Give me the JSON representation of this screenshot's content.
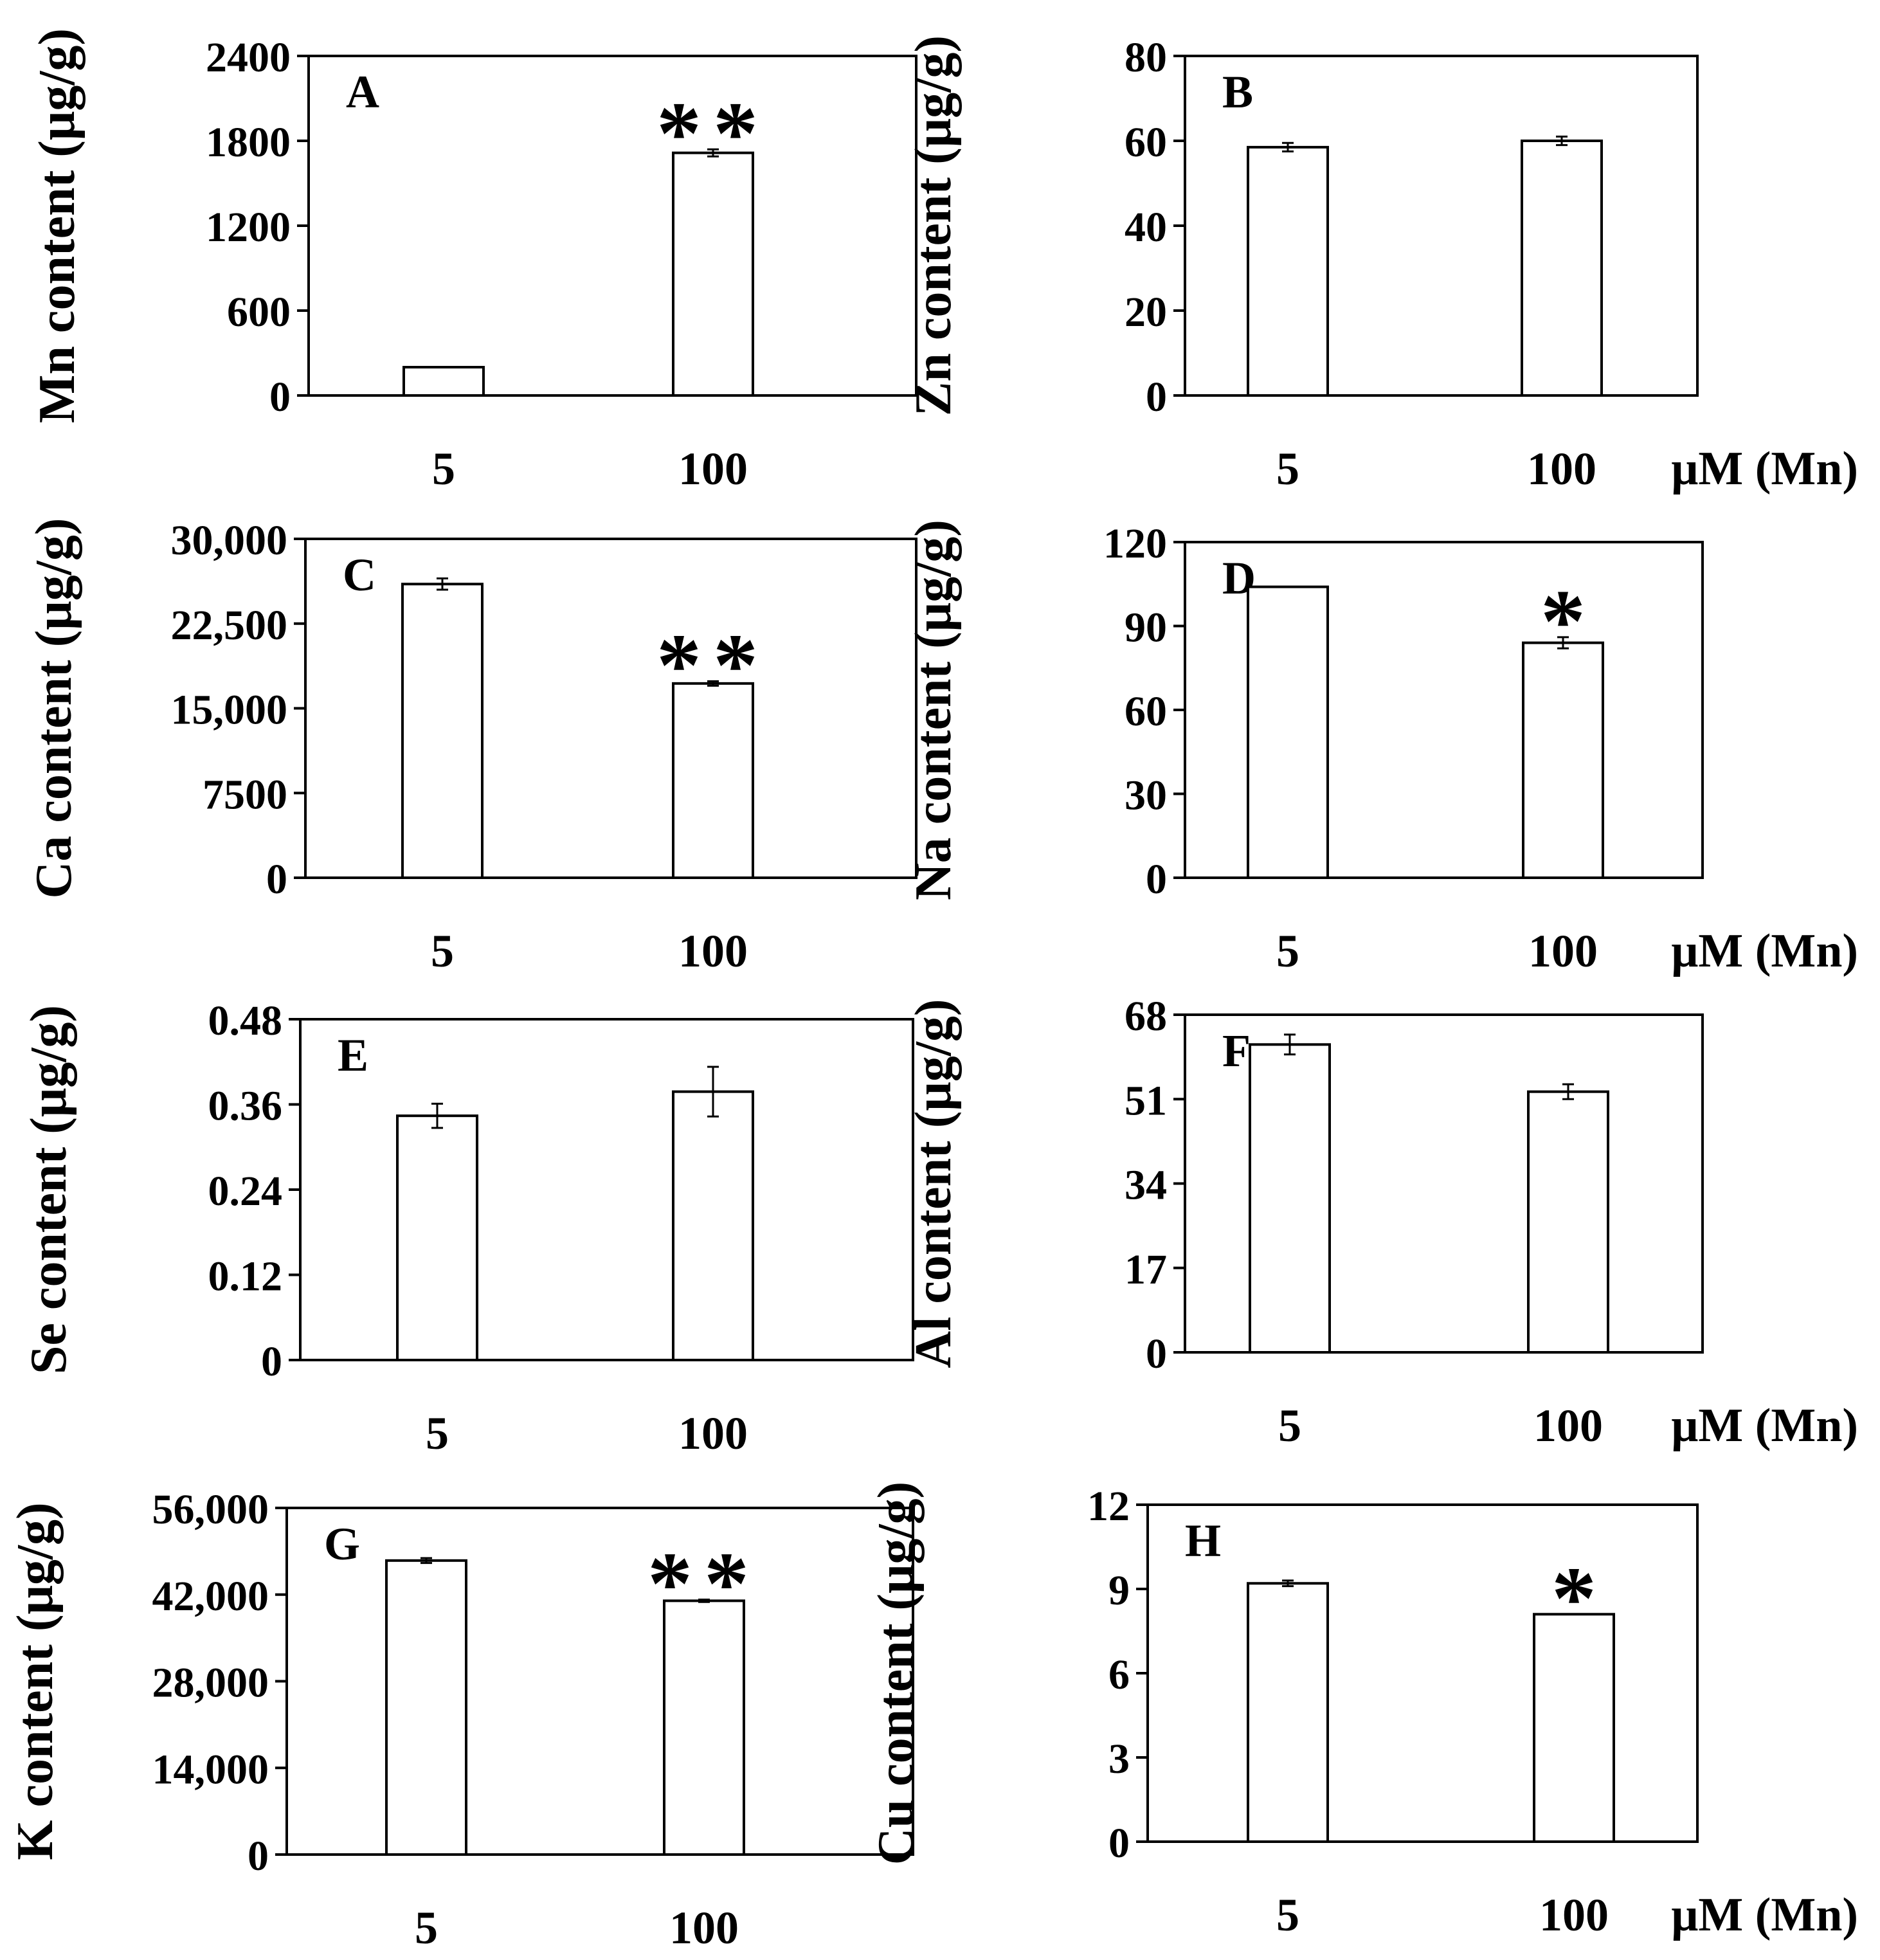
{
  "figure": {
    "x_unit_label": "μM (Mn)",
    "colors": {
      "bar_fill": "#ffffff",
      "stroke": "#000000",
      "background": "#ffffff"
    }
  },
  "chart_data": [
    {
      "panel": "A",
      "type": "bar",
      "ylabel": "Mn content (μg/g)",
      "categories": [
        "5",
        "100"
      ],
      "values": [
        200,
        1715
      ],
      "errors": [
        0,
        25
      ],
      "significance": [
        "",
        "**"
      ],
      "ylim": [
        0,
        2400
      ],
      "yticks": [
        0,
        600,
        1200,
        1800,
        2400
      ],
      "ytick_labels": [
        "0",
        "600",
        "1200",
        "1800",
        "2400"
      ],
      "show_unit_label": false
    },
    {
      "panel": "B",
      "type": "bar",
      "ylabel": "Zn content (μg/g)",
      "categories": [
        "5",
        "100"
      ],
      "values": [
        58.5,
        60
      ],
      "errors": [
        1,
        1
      ],
      "significance": [
        "",
        ""
      ],
      "ylim": [
        0,
        80
      ],
      "yticks": [
        0,
        20,
        40,
        60,
        80
      ],
      "ytick_labels": [
        "0",
        "20",
        "40",
        "60",
        "80"
      ],
      "show_unit_label": true
    },
    {
      "panel": "C",
      "type": "bar",
      "ylabel": "Ca content (μg/g)",
      "categories": [
        "5",
        "100"
      ],
      "values": [
        26000,
        17200
      ],
      "errors": [
        500,
        200
      ],
      "significance": [
        "",
        "**"
      ],
      "ylim": [
        0,
        30000
      ],
      "yticks": [
        0,
        7500,
        15000,
        22500,
        30000
      ],
      "ytick_labels": [
        "0",
        "7500",
        "15,000",
        "22,500",
        "30,000"
      ],
      "show_unit_label": false
    },
    {
      "panel": "D",
      "type": "bar",
      "ylabel": "Na content (μg/g)",
      "categories": [
        "5",
        "100"
      ],
      "values": [
        104,
        84
      ],
      "errors": [
        0,
        2
      ],
      "significance": [
        "",
        "*"
      ],
      "ylim": [
        0,
        120
      ],
      "yticks": [
        0,
        30,
        60,
        90,
        120
      ],
      "ytick_labels": [
        "0",
        "30",
        "60",
        "90",
        "120"
      ],
      "show_unit_label": true
    },
    {
      "panel": "E",
      "type": "bar",
      "ylabel": "Se content (μg/g)",
      "categories": [
        "5",
        "100"
      ],
      "values": [
        0.344,
        0.378
      ],
      "errors": [
        0.017,
        0.035
      ],
      "significance": [
        "",
        ""
      ],
      "ylim": [
        0,
        0.48
      ],
      "yticks": [
        0,
        0.12,
        0.24,
        0.36,
        0.48
      ],
      "ytick_labels": [
        "0",
        "0.12",
        "0.24",
        "0.36",
        "0.48"
      ],
      "show_unit_label": false
    },
    {
      "panel": "F",
      "type": "bar",
      "ylabel": "Al content (μg/g)",
      "categories": [
        "5",
        "100"
      ],
      "values": [
        62,
        52.5
      ],
      "errors": [
        2,
        1.5
      ],
      "significance": [
        "",
        ""
      ],
      "ylim": [
        0,
        68
      ],
      "yticks": [
        0,
        17,
        34,
        51,
        68
      ],
      "ytick_labels": [
        "0",
        "17",
        "34",
        "51",
        "68"
      ],
      "show_unit_label": true
    },
    {
      "panel": "G",
      "type": "bar",
      "ylabel": "K content (μg/g)",
      "categories": [
        "5",
        "100"
      ],
      "values": [
        47500,
        41000
      ],
      "errors": [
        400,
        200
      ],
      "significance": [
        "",
        "**"
      ],
      "ylim": [
        0,
        56000
      ],
      "yticks": [
        0,
        14000,
        28000,
        42000,
        56000
      ],
      "ytick_labels": [
        "0",
        "14,000",
        "28,000",
        "42,000",
        "56,000"
      ],
      "show_unit_label": false
    },
    {
      "panel": "H",
      "type": "bar",
      "ylabel": "Cu content (μg/g)",
      "categories": [
        "5",
        "100"
      ],
      "values": [
        9.2,
        8.1
      ],
      "errors": [
        0.1,
        0
      ],
      "significance": [
        "",
        "*"
      ],
      "ylim": [
        0,
        12
      ],
      "yticks": [
        0,
        3,
        6,
        9,
        12
      ],
      "ytick_labels": [
        "0",
        "3",
        "6",
        "9",
        "12"
      ],
      "show_unit_label": true
    }
  ]
}
